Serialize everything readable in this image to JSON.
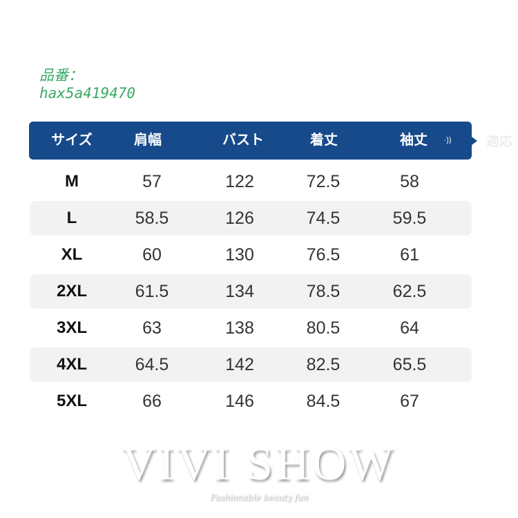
{
  "product_code": {
    "label": "品番：",
    "value": "hax5a419470"
  },
  "table": {
    "headers": [
      "サイズ",
      "肩幅",
      "バスト",
      "着丈",
      "袖丈"
    ],
    "header_icon": "sound-wave-icon",
    "side_text": "適応",
    "header_color": "#174a8b",
    "rows": [
      [
        "M",
        "57",
        "122",
        "72.5",
        "58"
      ],
      [
        "L",
        "58.5",
        "126",
        "74.5",
        "59.5"
      ],
      [
        "XL",
        "60",
        "130",
        "76.5",
        "61"
      ],
      [
        "2XL",
        "61.5",
        "134",
        "78.5",
        "62.5"
      ],
      [
        "3XL",
        "63",
        "138",
        "80.5",
        "64"
      ],
      [
        "4XL",
        "64.5",
        "142",
        "82.5",
        "65.5"
      ],
      [
        "5XL",
        "66",
        "146",
        "84.5",
        "67"
      ]
    ]
  },
  "watermark": {
    "brand": "VIVI SHOW",
    "tagline": "Fashionable beauty fun"
  }
}
